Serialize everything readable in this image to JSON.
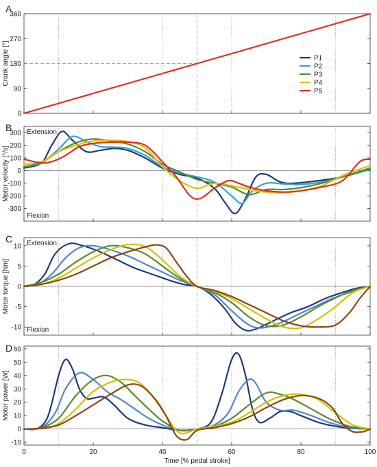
{
  "colors": {
    "P1": "#1f3a7a",
    "P2": "#33a3d3",
    "P3": "#5a8a2a",
    "P4": "#e0c000",
    "P5": "#e02c1f",
    "torque_power": [
      "#1f3a7a",
      "#4f86d0",
      "#5a8a2a",
      "#d4c000",
      "#8b4513"
    ],
    "vline": "#888888",
    "axis": "#333333"
  },
  "chart_data": [
    {
      "panel": "A",
      "type": "line",
      "xlabel": "",
      "ylabel": "Crank angle [°]",
      "xlim": [
        0,
        100
      ],
      "ylim": [
        0,
        360
      ],
      "yticks": [
        0,
        90,
        180,
        270,
        360
      ],
      "vlines_dotted": [
        10,
        40,
        60,
        90
      ],
      "vlines_dashed": [
        50
      ],
      "reference_line": {
        "x_from": 0,
        "x_to": 50,
        "y": 180
      },
      "legend": {
        "placement": "right",
        "entries": [
          "P1",
          "P2",
          "P3",
          "P4",
          "P5"
        ]
      },
      "series": [
        {
          "name": "P5",
          "x": [
            0,
            10,
            20,
            30,
            40,
            50,
            60,
            70,
            80,
            90,
            100
          ],
          "values": [
            0,
            36,
            72,
            108,
            144,
            180,
            216,
            252,
            288,
            324,
            360
          ]
        }
      ]
    },
    {
      "panel": "B",
      "type": "line",
      "xlabel": "",
      "ylabel": "Motor velocity [°/s]",
      "xlim": [
        0,
        100
      ],
      "ylim": [
        -400,
        350
      ],
      "yticks": [
        -300,
        -200,
        -100,
        0,
        100,
        200,
        300
      ],
      "vlines_dotted": [
        10,
        40,
        60,
        90
      ],
      "vlines_dashed": [
        50
      ],
      "annotations": [
        "Extension",
        "Flexion"
      ],
      "series": [
        {
          "name": "P1",
          "x": [
            0,
            5,
            8,
            11,
            14,
            18,
            22,
            26,
            30,
            35,
            40,
            45,
            50,
            55,
            58,
            61,
            64,
            67,
            70,
            74,
            78,
            85,
            92,
            100
          ],
          "values": [
            20,
            60,
            200,
            310,
            240,
            150,
            160,
            175,
            160,
            100,
            20,
            -30,
            -60,
            -140,
            -250,
            -340,
            -220,
            -50,
            -30,
            -90,
            -100,
            -80,
            -50,
            10
          ]
        },
        {
          "name": "P2",
          "x": [
            0,
            5,
            10,
            14,
            18,
            22,
            26,
            30,
            35,
            40,
            45,
            50,
            55,
            60,
            63,
            66,
            70,
            75,
            80,
            86,
            92,
            100
          ],
          "values": [
            30,
            60,
            170,
            270,
            230,
            190,
            185,
            175,
            120,
            30,
            -20,
            -50,
            -90,
            -200,
            -260,
            -160,
            -100,
            -105,
            -110,
            -90,
            -50,
            10
          ]
        },
        {
          "name": "P3",
          "x": [
            0,
            5,
            10,
            15,
            20,
            25,
            30,
            35,
            40,
            45,
            50,
            55,
            60,
            65,
            70,
            75,
            80,
            86,
            92,
            100
          ],
          "values": [
            30,
            65,
            150,
            220,
            250,
            235,
            210,
            150,
            50,
            -10,
            -70,
            -100,
            -130,
            -190,
            -150,
            -150,
            -135,
            -100,
            -50,
            20
          ]
        },
        {
          "name": "P4",
          "x": [
            0,
            5,
            10,
            15,
            20,
            25,
            30,
            35,
            40,
            45,
            50,
            55,
            60,
            65,
            70,
            75,
            80,
            86,
            92,
            100
          ],
          "values": [
            50,
            70,
            150,
            200,
            235,
            240,
            230,
            180,
            30,
            -80,
            -140,
            -100,
            -120,
            -150,
            -170,
            -175,
            -160,
            -120,
            -40,
            40
          ]
        },
        {
          "name": "P5",
          "x": [
            0,
            3,
            6,
            9,
            12,
            16,
            20,
            25,
            30,
            35,
            40,
            44,
            48,
            51,
            55,
            59,
            62,
            65,
            70,
            75,
            80,
            86,
            92,
            97,
            100
          ],
          "values": [
            90,
            70,
            60,
            80,
            120,
            190,
            215,
            225,
            225,
            200,
            70,
            -50,
            -200,
            -220,
            -140,
            -80,
            -100,
            -130,
            -160,
            -170,
            -160,
            -130,
            -80,
            70,
            90
          ]
        }
      ]
    },
    {
      "panel": "C",
      "type": "line",
      "xlabel": "",
      "ylabel": "Motor torque [Nm]",
      "xlim": [
        0,
        100
      ],
      "ylim": [
        -12,
        12
      ],
      "yticks": [
        -10,
        -5,
        0,
        5,
        10
      ],
      "vlines_dotted": [
        10,
        40,
        60,
        90
      ],
      "vlines_dashed": [
        50
      ],
      "annotations": [
        "Extension",
        "Flexion"
      ],
      "series": [
        {
          "name": "P1",
          "x": [
            0,
            3,
            6,
            9,
            13,
            17,
            22,
            27,
            32,
            37,
            42,
            46,
            50,
            54,
            58,
            61,
            64,
            67,
            72,
            77,
            82,
            87,
            92,
            96,
            100
          ],
          "values": [
            0,
            0.5,
            3,
            8,
            10.5,
            10,
            8.5,
            6.5,
            4.5,
            3,
            1.5,
            0.5,
            0,
            -2,
            -5.5,
            -9,
            -10.8,
            -10.5,
            -8.5,
            -6.5,
            -5,
            -3,
            -1.5,
            -0.5,
            0
          ]
        },
        {
          "name": "P2",
          "x": [
            0,
            4,
            8,
            12,
            16,
            20,
            25,
            30,
            35,
            40,
            45,
            50,
            55,
            60,
            65,
            69,
            74,
            79,
            84,
            89,
            94,
            100
          ],
          "values": [
            0,
            0.5,
            3,
            7,
            9.5,
            10,
            9,
            7.5,
            5.5,
            3.5,
            1.5,
            0,
            -2,
            -6,
            -9.5,
            -10.2,
            -9,
            -7,
            -5,
            -3,
            -1.5,
            0
          ]
        },
        {
          "name": "P3",
          "x": [
            0,
            5,
            10,
            15,
            20,
            25,
            30,
            35,
            40,
            45,
            50,
            55,
            60,
            65,
            70,
            75,
            80,
            85,
            90,
            95,
            100
          ],
          "values": [
            0,
            1,
            3,
            6,
            8.5,
            10,
            9.5,
            8,
            5,
            2,
            0,
            -1.5,
            -4,
            -7.5,
            -9.7,
            -9.5,
            -7.5,
            -5,
            -2.8,
            -1,
            0
          ]
        },
        {
          "name": "P4",
          "x": [
            0,
            5,
            10,
            15,
            20,
            25,
            30,
            35,
            40,
            45,
            50,
            55,
            60,
            65,
            70,
            75,
            80,
            85,
            90,
            95,
            100
          ],
          "values": [
            0,
            0.5,
            2,
            4.5,
            7,
            9,
            10.3,
            9.8,
            6.5,
            2.5,
            0,
            -1.2,
            -3,
            -5.5,
            -8,
            -10,
            -10.2,
            -8,
            -5,
            -1.5,
            0
          ]
        },
        {
          "name": "P5",
          "x": [
            0,
            5,
            10,
            15,
            20,
            25,
            30,
            35,
            38,
            41,
            44,
            47,
            50,
            55,
            60,
            65,
            70,
            75,
            80,
            85,
            90,
            94,
            97,
            100
          ],
          "values": [
            0,
            0.5,
            1.5,
            3,
            5,
            7,
            8.5,
            9.7,
            10.2,
            9.5,
            6,
            2.5,
            0,
            -1,
            -2.5,
            -4.5,
            -6.5,
            -8.5,
            -9.7,
            -10,
            -9.5,
            -6.5,
            -3,
            0
          ]
        }
      ]
    },
    {
      "panel": "D",
      "type": "line",
      "xlabel": "Time [% pedal stroke]",
      "ylabel": "Motor power [W]",
      "xlim": [
        0,
        100
      ],
      "ylim": [
        -12,
        62
      ],
      "xticks": [
        0,
        20,
        40,
        60,
        80,
        100
      ],
      "yticks": [
        -10,
        0,
        10,
        20,
        30,
        40,
        50,
        60
      ],
      "vlines_dotted": [
        10,
        40,
        60,
        90
      ],
      "vlines_dashed": [
        50
      ],
      "series": [
        {
          "name": "P1",
          "x": [
            0,
            4,
            7,
            10,
            12,
            14,
            16,
            18,
            20,
            23,
            26,
            30,
            35,
            40,
            45,
            50,
            54,
            57,
            60,
            62,
            64,
            66,
            68,
            71,
            74,
            77,
            80,
            85,
            90,
            95,
            100
          ],
          "values": [
            0,
            0.5,
            10,
            40,
            52,
            45,
            30,
            23,
            23,
            24,
            18,
            8,
            3,
            1,
            -1,
            0,
            5,
            25,
            52,
            56,
            40,
            15,
            5,
            8,
            13,
            13,
            10,
            5,
            2,
            0.5,
            0
          ]
        },
        {
          "name": "P2",
          "x": [
            0,
            5,
            9,
            12,
            16,
            20,
            24,
            28,
            32,
            36,
            40,
            45,
            50,
            55,
            59,
            62,
            65,
            67,
            70,
            74,
            78,
            83,
            88,
            94,
            100
          ],
          "values": [
            0,
            1,
            12,
            30,
            42,
            37,
            28,
            22,
            15,
            8,
            3,
            -1,
            0,
            3,
            12,
            28,
            37,
            34,
            20,
            14,
            14,
            10,
            5,
            1,
            0
          ]
        },
        {
          "name": "P3",
          "x": [
            0,
            5,
            10,
            15,
            20,
            24,
            28,
            32,
            36,
            40,
            45,
            50,
            55,
            60,
            65,
            70,
            74,
            78,
            83,
            88,
            94,
            100
          ],
          "values": [
            0,
            1,
            8,
            25,
            37,
            40,
            35,
            25,
            15,
            6,
            -1,
            0,
            2,
            8,
            18,
            27,
            26,
            22,
            15,
            8,
            2,
            0
          ]
        },
        {
          "name": "P4",
          "x": [
            0,
            5,
            10,
            15,
            20,
            25,
            29,
            33,
            37,
            41,
            45,
            50,
            55,
            60,
            65,
            70,
            75,
            80,
            85,
            90,
            95,
            100
          ],
          "values": [
            0,
            0.5,
            4,
            15,
            28,
            35,
            37,
            35,
            25,
            10,
            -3,
            0,
            2,
            5,
            12,
            20,
            25,
            26,
            22,
            12,
            3,
            0
          ]
        },
        {
          "name": "P5",
          "x": [
            0,
            5,
            10,
            15,
            20,
            25,
            30,
            34,
            38,
            41,
            44,
            47,
            50,
            55,
            60,
            65,
            70,
            75,
            80,
            85,
            89,
            92,
            95,
            98,
            100
          ],
          "values": [
            0,
            0.5,
            3,
            10,
            18,
            26,
            33,
            32,
            22,
            10,
            -5,
            -8,
            -1,
            1,
            4,
            9,
            16,
            22,
            25,
            23,
            16,
            4,
            -2,
            -2,
            0
          ]
        }
      ]
    }
  ]
}
